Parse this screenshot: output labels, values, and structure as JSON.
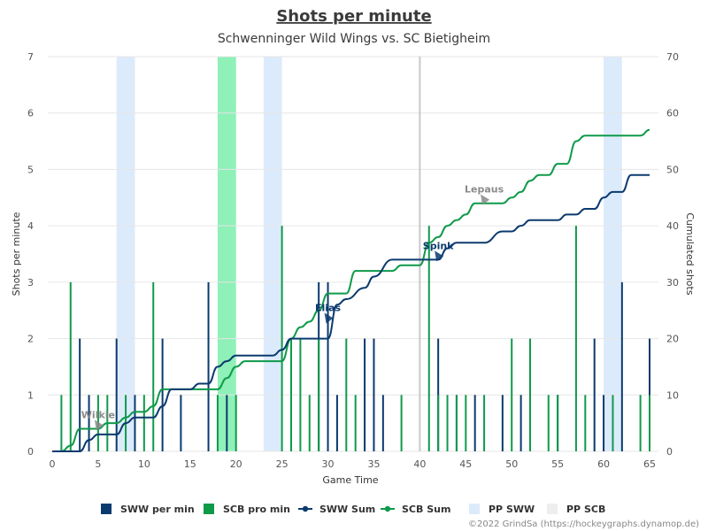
{
  "chart_data": {
    "type": "bar+line",
    "title": "Shots per minute",
    "subtitle": "Schwenninger Wild Wings vs. SC Bietigheim",
    "xlabel": "Game Time",
    "ylabel_left": "Shots per minute",
    "ylabel_right": "Cumulated shots",
    "xlim": [
      0,
      65
    ],
    "ylim_left": [
      0,
      7
    ],
    "ylim_right": [
      0,
      70
    ],
    "x_ticks": [
      "0",
      "5",
      "10",
      "15",
      "20",
      "25",
      "30",
      "35",
      "40",
      "45",
      "50",
      "55",
      "60",
      "65"
    ],
    "y_left_ticks": [
      "0",
      "1",
      "2",
      "3",
      "4",
      "5",
      "6",
      "7"
    ],
    "y_right_ticks": [
      "0",
      "10",
      "20",
      "30",
      "40",
      "50",
      "60",
      "70"
    ],
    "grid": true,
    "colors": {
      "sww": "#0b3a6e",
      "scb": "#0f9a4a",
      "pp_sww": "#dcebfb",
      "pp_scb_5v3": "#8ff0b8",
      "pp_scb": "#eeeeee",
      "period_line": "#c8c8c8"
    },
    "sww_per_min": [
      {
        "x": 3,
        "y": 2
      },
      {
        "x": 4,
        "y": 1
      },
      {
        "x": 7,
        "y": 2
      },
      {
        "x": 9,
        "y": 1
      },
      {
        "x": 12,
        "y": 2
      },
      {
        "x": 14,
        "y": 1
      },
      {
        "x": 17,
        "y": 3
      },
      {
        "x": 19,
        "y": 1
      },
      {
        "x": 29,
        "y": 3
      },
      {
        "x": 30,
        "y": 3
      },
      {
        "x": 31,
        "y": 1
      },
      {
        "x": 34,
        "y": 2
      },
      {
        "x": 35,
        "y": 2
      },
      {
        "x": 36,
        "y": 1
      },
      {
        "x": 42,
        "y": 2
      },
      {
        "x": 44,
        "y": 1
      },
      {
        "x": 46,
        "y": 1
      },
      {
        "x": 49,
        "y": 1
      },
      {
        "x": 51,
        "y": 1
      },
      {
        "x": 55,
        "y": 1
      },
      {
        "x": 59,
        "y": 2
      },
      {
        "x": 60,
        "y": 1
      },
      {
        "x": 62,
        "y": 3
      },
      {
        "x": 65,
        "y": 2
      }
    ],
    "scb_per_min": [
      {
        "x": 1,
        "y": 1
      },
      {
        "x": 2,
        "y": 3
      },
      {
        "x": 5,
        "y": 1
      },
      {
        "x": 6,
        "y": 1
      },
      {
        "x": 8,
        "y": 1
      },
      {
        "x": 10,
        "y": 1
      },
      {
        "x": 11,
        "y": 3
      },
      {
        "x": 18,
        "y": 1
      },
      {
        "x": 20,
        "y": 1
      },
      {
        "x": 25,
        "y": 4
      },
      {
        "x": 26,
        "y": 2
      },
      {
        "x": 27,
        "y": 2
      },
      {
        "x": 28,
        "y": 1
      },
      {
        "x": 29,
        "y": 2
      },
      {
        "x": 32,
        "y": 2
      },
      {
        "x": 33,
        "y": 1
      },
      {
        "x": 38,
        "y": 1
      },
      {
        "x": 41,
        "y": 4
      },
      {
        "x": 42,
        "y": 1
      },
      {
        "x": 43,
        "y": 1
      },
      {
        "x": 44,
        "y": 1
      },
      {
        "x": 45,
        "y": 1
      },
      {
        "x": 47,
        "y": 1
      },
      {
        "x": 50,
        "y": 2
      },
      {
        "x": 52,
        "y": 2
      },
      {
        "x": 54,
        "y": 1
      },
      {
        "x": 55,
        "y": 1
      },
      {
        "x": 57,
        "y": 4
      },
      {
        "x": 58,
        "y": 1
      },
      {
        "x": 61,
        "y": 1
      },
      {
        "x": 64,
        "y": 1
      },
      {
        "x": 65,
        "y": 1
      }
    ],
    "sww_sum": [
      [
        0,
        0
      ],
      [
        3,
        0
      ],
      [
        4,
        2
      ],
      [
        5,
        3
      ],
      [
        7,
        3
      ],
      [
        8,
        5
      ],
      [
        9,
        6
      ],
      [
        11,
        6
      ],
      [
        12,
        8
      ],
      [
        13,
        11
      ],
      [
        15,
        11
      ],
      [
        16,
        12
      ],
      [
        17,
        12
      ],
      [
        18,
        15
      ],
      [
        19,
        16
      ],
      [
        20,
        17
      ],
      [
        24,
        17
      ],
      [
        25,
        18
      ],
      [
        26,
        20
      ],
      [
        29,
        20
      ],
      [
        30,
        20
      ],
      [
        31,
        26
      ],
      [
        32,
        27
      ],
      [
        34,
        29
      ],
      [
        35,
        31
      ],
      [
        37,
        34
      ],
      [
        40,
        34
      ],
      [
        41,
        34
      ],
      [
        42,
        34
      ],
      [
        43,
        36
      ],
      [
        44,
        37
      ],
      [
        47,
        37
      ],
      [
        49,
        39
      ],
      [
        50,
        39
      ],
      [
        51,
        40
      ],
      [
        52,
        41
      ],
      [
        55,
        41
      ],
      [
        56,
        42
      ],
      [
        57,
        42
      ],
      [
        58,
        43
      ],
      [
        59,
        43
      ],
      [
        60,
        45
      ],
      [
        61,
        46
      ],
      [
        62,
        46
      ],
      [
        63,
        49
      ],
      [
        65,
        49
      ]
    ],
    "scb_sum": [
      [
        0,
        0
      ],
      [
        1,
        0
      ],
      [
        2,
        1
      ],
      [
        3,
        4
      ],
      [
        4,
        4
      ],
      [
        5,
        4
      ],
      [
        6,
        5
      ],
      [
        7,
        5
      ],
      [
        8,
        6
      ],
      [
        9,
        7
      ],
      [
        10,
        7
      ],
      [
        11,
        8
      ],
      [
        12,
        11
      ],
      [
        18,
        11
      ],
      [
        19,
        13
      ],
      [
        20,
        15
      ],
      [
        21,
        16
      ],
      [
        25,
        16
      ],
      [
        26,
        20
      ],
      [
        27,
        22
      ],
      [
        28,
        23
      ],
      [
        29,
        25
      ],
      [
        30,
        28
      ],
      [
        31,
        28
      ],
      [
        32,
        28
      ],
      [
        33,
        32
      ],
      [
        37,
        32
      ],
      [
        38,
        33
      ],
      [
        40,
        33
      ],
      [
        41,
        37
      ],
      [
        42,
        38
      ],
      [
        43,
        40
      ],
      [
        44,
        41
      ],
      [
        45,
        42
      ],
      [
        46,
        44
      ],
      [
        47,
        44
      ],
      [
        49,
        44
      ],
      [
        50,
        45
      ],
      [
        51,
        46
      ],
      [
        52,
        48
      ],
      [
        53,
        49
      ],
      [
        54,
        49
      ],
      [
        55,
        51
      ],
      [
        56,
        51
      ],
      [
        57,
        55
      ],
      [
        58,
        56
      ],
      [
        64,
        56
      ],
      [
        65,
        57
      ]
    ],
    "pp_sww": [
      [
        7,
        9
      ],
      [
        23,
        25
      ],
      [
        60,
        62
      ]
    ],
    "pp_scb_5v3": [
      [
        18,
        20
      ]
    ],
    "pp_scb": [],
    "period_marker": 40,
    "goals": [
      {
        "name": "Wilkie",
        "x": 5,
        "y": 4,
        "team": "scb"
      },
      {
        "name": "Elias",
        "x": 30,
        "y": 23,
        "team": "sww"
      },
      {
        "name": "Spink",
        "x": 42,
        "y": 34,
        "team": "sww"
      },
      {
        "name": "Lepaus",
        "x": 47,
        "y": 44,
        "team": "scb"
      }
    ],
    "legend": {
      "placement": "bottom",
      "items": [
        {
          "label": "SWW per min",
          "kind": "bar",
          "color": "#0b3a6e"
        },
        {
          "label": "SCB pro min",
          "kind": "bar",
          "color": "#0f9a4a"
        },
        {
          "label": "SWW Sum",
          "kind": "line",
          "color": "#0b3a6e"
        },
        {
          "label": "SCB Sum",
          "kind": "line",
          "color": "#0f9a4a"
        },
        {
          "label": "PP SWW",
          "kind": "band",
          "color": "#dcebfb"
        },
        {
          "label": "PP SCB",
          "kind": "band",
          "color": "#eeeeee"
        }
      ]
    },
    "credit": "©2022 GrindSa (https://hockeygraphs.dynamop.de)"
  }
}
